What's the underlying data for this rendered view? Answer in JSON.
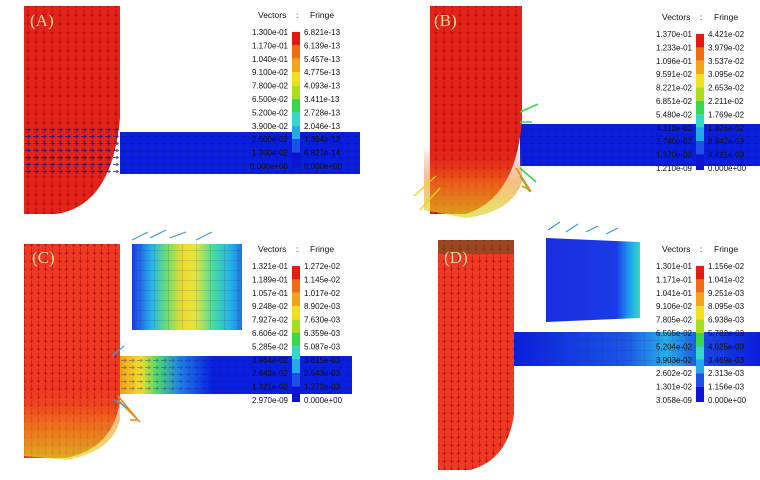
{
  "colors": {
    "scale": [
      "#0a14d2",
      "#1f4fe6",
      "#23a9e6",
      "#33d8c8",
      "#36d84d",
      "#a8de1e",
      "#f0e21a",
      "#f5a415",
      "#f06a10",
      "#e21a12"
    ],
    "vector": "#e21a12",
    "vector_dark": "#1a2a8c",
    "plate": "#0a1ee0",
    "background": "#ffffff"
  },
  "panels": [
    {
      "id": "A",
      "label": "(A)",
      "legend": {
        "vectors_header": "Vectors",
        "separator": ":",
        "fringe_header": "Fringe",
        "vectors": [
          "1.300e-01",
          "1.170e-01",
          "1.040e-01",
          "9.100e-02",
          "7.800e-02",
          "6.500e-02",
          "5.200e-02",
          "3.900e-02",
          "2.600e-02",
          "1.300e-02",
          "0.000e+00"
        ],
        "fringe": [
          "6.821e-13",
          "6.139e-13",
          "5.457e-13",
          "4.775e-13",
          "4.093e-13",
          "3.411e-13",
          "2.728e-13",
          "2.046e-13",
          "1.364e-13",
          "6.821e-14",
          "0.000e+00"
        ]
      }
    },
    {
      "id": "B",
      "label": "(B)",
      "legend": {
        "vectors_header": "Vectors",
        "separator": ":",
        "fringe_header": "Fringe",
        "vectors": [
          "1.370e-01",
          "1.233e-01",
          "1.096e-01",
          "9.591e-02",
          "8.221e-02",
          "6.851e-02",
          "5.480e-02",
          "4.110e-02",
          "2.740e-02",
          "1.370e-02",
          "1.210e-09"
        ],
        "fringe": [
          "4.421e-02",
          "3.979e-02",
          "3.537e-02",
          "3.095e-02",
          "2.653e-02",
          "2.211e-02",
          "1.769e-02",
          "1.326e-02",
          "8.842e-03",
          "4.421e-03",
          "0.000e+00"
        ]
      }
    },
    {
      "id": "C",
      "label": "(C)",
      "legend": {
        "vectors_header": "Vectors",
        "separator": ":",
        "fringe_header": "Fringe",
        "vectors": [
          "1.321e-01",
          "1.189e-01",
          "1.057e-01",
          "9.248e-02",
          "7.927e-02",
          "6.606e-02",
          "5.285e-02",
          "3.964e-02",
          "2.643e-02",
          "1.321e-02",
          "2.970e-09"
        ],
        "fringe": [
          "1.272e-02",
          "1.145e-02",
          "1.017e-02",
          "8.902e-03",
          "7.630e-03",
          "6.359e-03",
          "5.087e-03",
          "3.815e-03",
          "2.543e-03",
          "1.272e-03",
          "0.000e+00"
        ]
      }
    },
    {
      "id": "D",
      "label": "(D)",
      "legend": {
        "vectors_header": "Vectors",
        "separator": ":",
        "fringe_header": "Fringe",
        "vectors": [
          "1.301e-01",
          "1.171e-01",
          "1.041e-01",
          "9.106e-02",
          "7.805e-02",
          "6.505e-02",
          "5.204e-02",
          "3.903e-02",
          "2.602e-02",
          "1.301e-02",
          "3.058e-09"
        ],
        "fringe": [
          "1.156e-02",
          "1.041e-02",
          "9.251e-03",
          "8.095e-03",
          "6.938e-03",
          "5.782e-03",
          "4.625e-03",
          "3.469e-03",
          "2.313e-03",
          "1.156e-03",
          "0.000e+00"
        ]
      }
    }
  ]
}
